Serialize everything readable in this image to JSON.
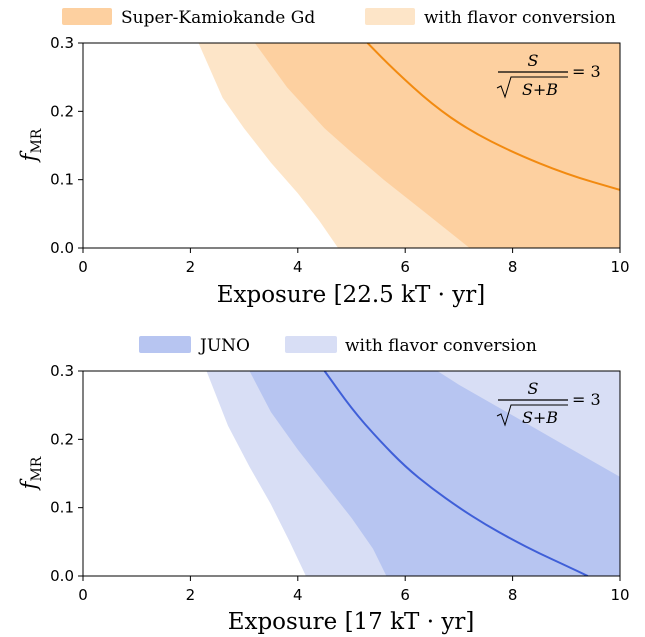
{
  "chart_data": [
    {
      "type": "area",
      "legend": [
        {
          "label": "Super-Kamiokande Gd",
          "color": "#fdd0a0"
        },
        {
          "label": "with flavor conversion",
          "color": "#fde5c8"
        }
      ],
      "xlabel": "Exposure [22.5 kT · yr]",
      "ylabel": "f",
      "ylabel_sub": "MR",
      "xlim": [
        0,
        10
      ],
      "ylim": [
        0,
        0.3
      ],
      "xticks": [
        "0",
        "2",
        "4",
        "6",
        "8",
        "10"
      ],
      "yticks": [
        "0.0",
        "0.1",
        "0.2",
        "0.3"
      ],
      "annotation": {
        "numerator": "S",
        "denominator": "S+B",
        "rhs": "= 3"
      },
      "bands": [
        {
          "name": "with flavor conversion",
          "color": "#fde5c8",
          "left": [
            [
              2.15,
              0.3
            ],
            [
              2.6,
              0.22
            ],
            [
              3.0,
              0.175
            ],
            [
              3.5,
              0.125
            ],
            [
              4.0,
              0.08
            ],
            [
              4.4,
              0.04
            ],
            [
              4.75,
              0.0
            ]
          ],
          "right": [
            [
              7.2,
              0.0
            ],
            [
              10.0,
              0.0
            ],
            [
              10.0,
              0.3
            ],
            [
              9.1,
              0.3
            ]
          ]
        },
        {
          "name": "Super-Kamiokande Gd",
          "color": "#fdd0a0",
          "left": [
            [
              3.2,
              0.3
            ],
            [
              3.8,
              0.235
            ],
            [
              4.5,
              0.175
            ],
            [
              5.0,
              0.14
            ],
            [
              5.6,
              0.1
            ],
            [
              6.4,
              0.05
            ],
            [
              7.2,
              0.0
            ]
          ],
          "right": [
            [
              10.0,
              0.0
            ],
            [
              10.0,
              0.3
            ]
          ]
        }
      ],
      "line": {
        "color": "#f28a10",
        "points": [
          [
            5.3,
            0.3
          ],
          [
            5.8,
            0.26
          ],
          [
            6.5,
            0.21
          ],
          [
            7.2,
            0.172
          ],
          [
            8.0,
            0.14
          ],
          [
            9.0,
            0.108
          ],
          [
            10.0,
            0.085
          ]
        ]
      }
    },
    {
      "type": "area",
      "legend": [
        {
          "label": "JUNO",
          "color": "#b7c5f1"
        },
        {
          "label": "with flavor conversion",
          "color": "#d8def5"
        }
      ],
      "xlabel": "Exposure [17 kT · yr]",
      "ylabel": "f",
      "ylabel_sub": "MR",
      "xlim": [
        0,
        10
      ],
      "ylim": [
        0,
        0.3
      ],
      "xticks": [
        "0",
        "2",
        "4",
        "6",
        "8",
        "10"
      ],
      "yticks": [
        "0.0",
        "0.1",
        "0.2",
        "0.3"
      ],
      "annotation": {
        "numerator": "S",
        "denominator": "S+B",
        "rhs": "= 3"
      },
      "bands": [
        {
          "name": "with flavor conversion",
          "color": "#d8def5",
          "left": [
            [
              2.3,
              0.3
            ],
            [
              2.7,
              0.22
            ],
            [
              3.1,
              0.16
            ],
            [
              3.5,
              0.105
            ],
            [
              3.85,
              0.05
            ],
            [
              4.15,
              0.0
            ]
          ],
          "right": [
            [
              5.65,
              0.0
            ],
            [
              10.0,
              0.0
            ],
            [
              10.0,
              0.3
            ],
            [
              9.4,
              0.3
            ]
          ]
        },
        {
          "name": "JUNO",
          "color": "#b7c5f1",
          "left": [
            [
              3.1,
              0.3
            ],
            [
              3.5,
              0.24
            ],
            [
              4.0,
              0.185
            ],
            [
              4.5,
              0.135
            ],
            [
              5.0,
              0.085
            ],
            [
              5.4,
              0.04
            ],
            [
              5.65,
              0.0
            ]
          ],
          "right": [
            [
              10.0,
              0.0
            ],
            [
              10.0,
              0.145
            ],
            [
              9.0,
              0.19
            ],
            [
              8.0,
              0.235
            ],
            [
              7.0,
              0.28
            ],
            [
              6.6,
              0.3
            ]
          ]
        }
      ],
      "line": {
        "color": "#3f5fd8",
        "points": [
          [
            4.5,
            0.3
          ],
          [
            5.0,
            0.245
          ],
          [
            5.5,
            0.2
          ],
          [
            6.0,
            0.16
          ],
          [
            6.5,
            0.128
          ],
          [
            7.0,
            0.1
          ],
          [
            7.5,
            0.075
          ],
          [
            8.0,
            0.053
          ],
          [
            8.5,
            0.033
          ],
          [
            9.0,
            0.015
          ],
          [
            9.4,
            0.0
          ]
        ]
      }
    }
  ]
}
